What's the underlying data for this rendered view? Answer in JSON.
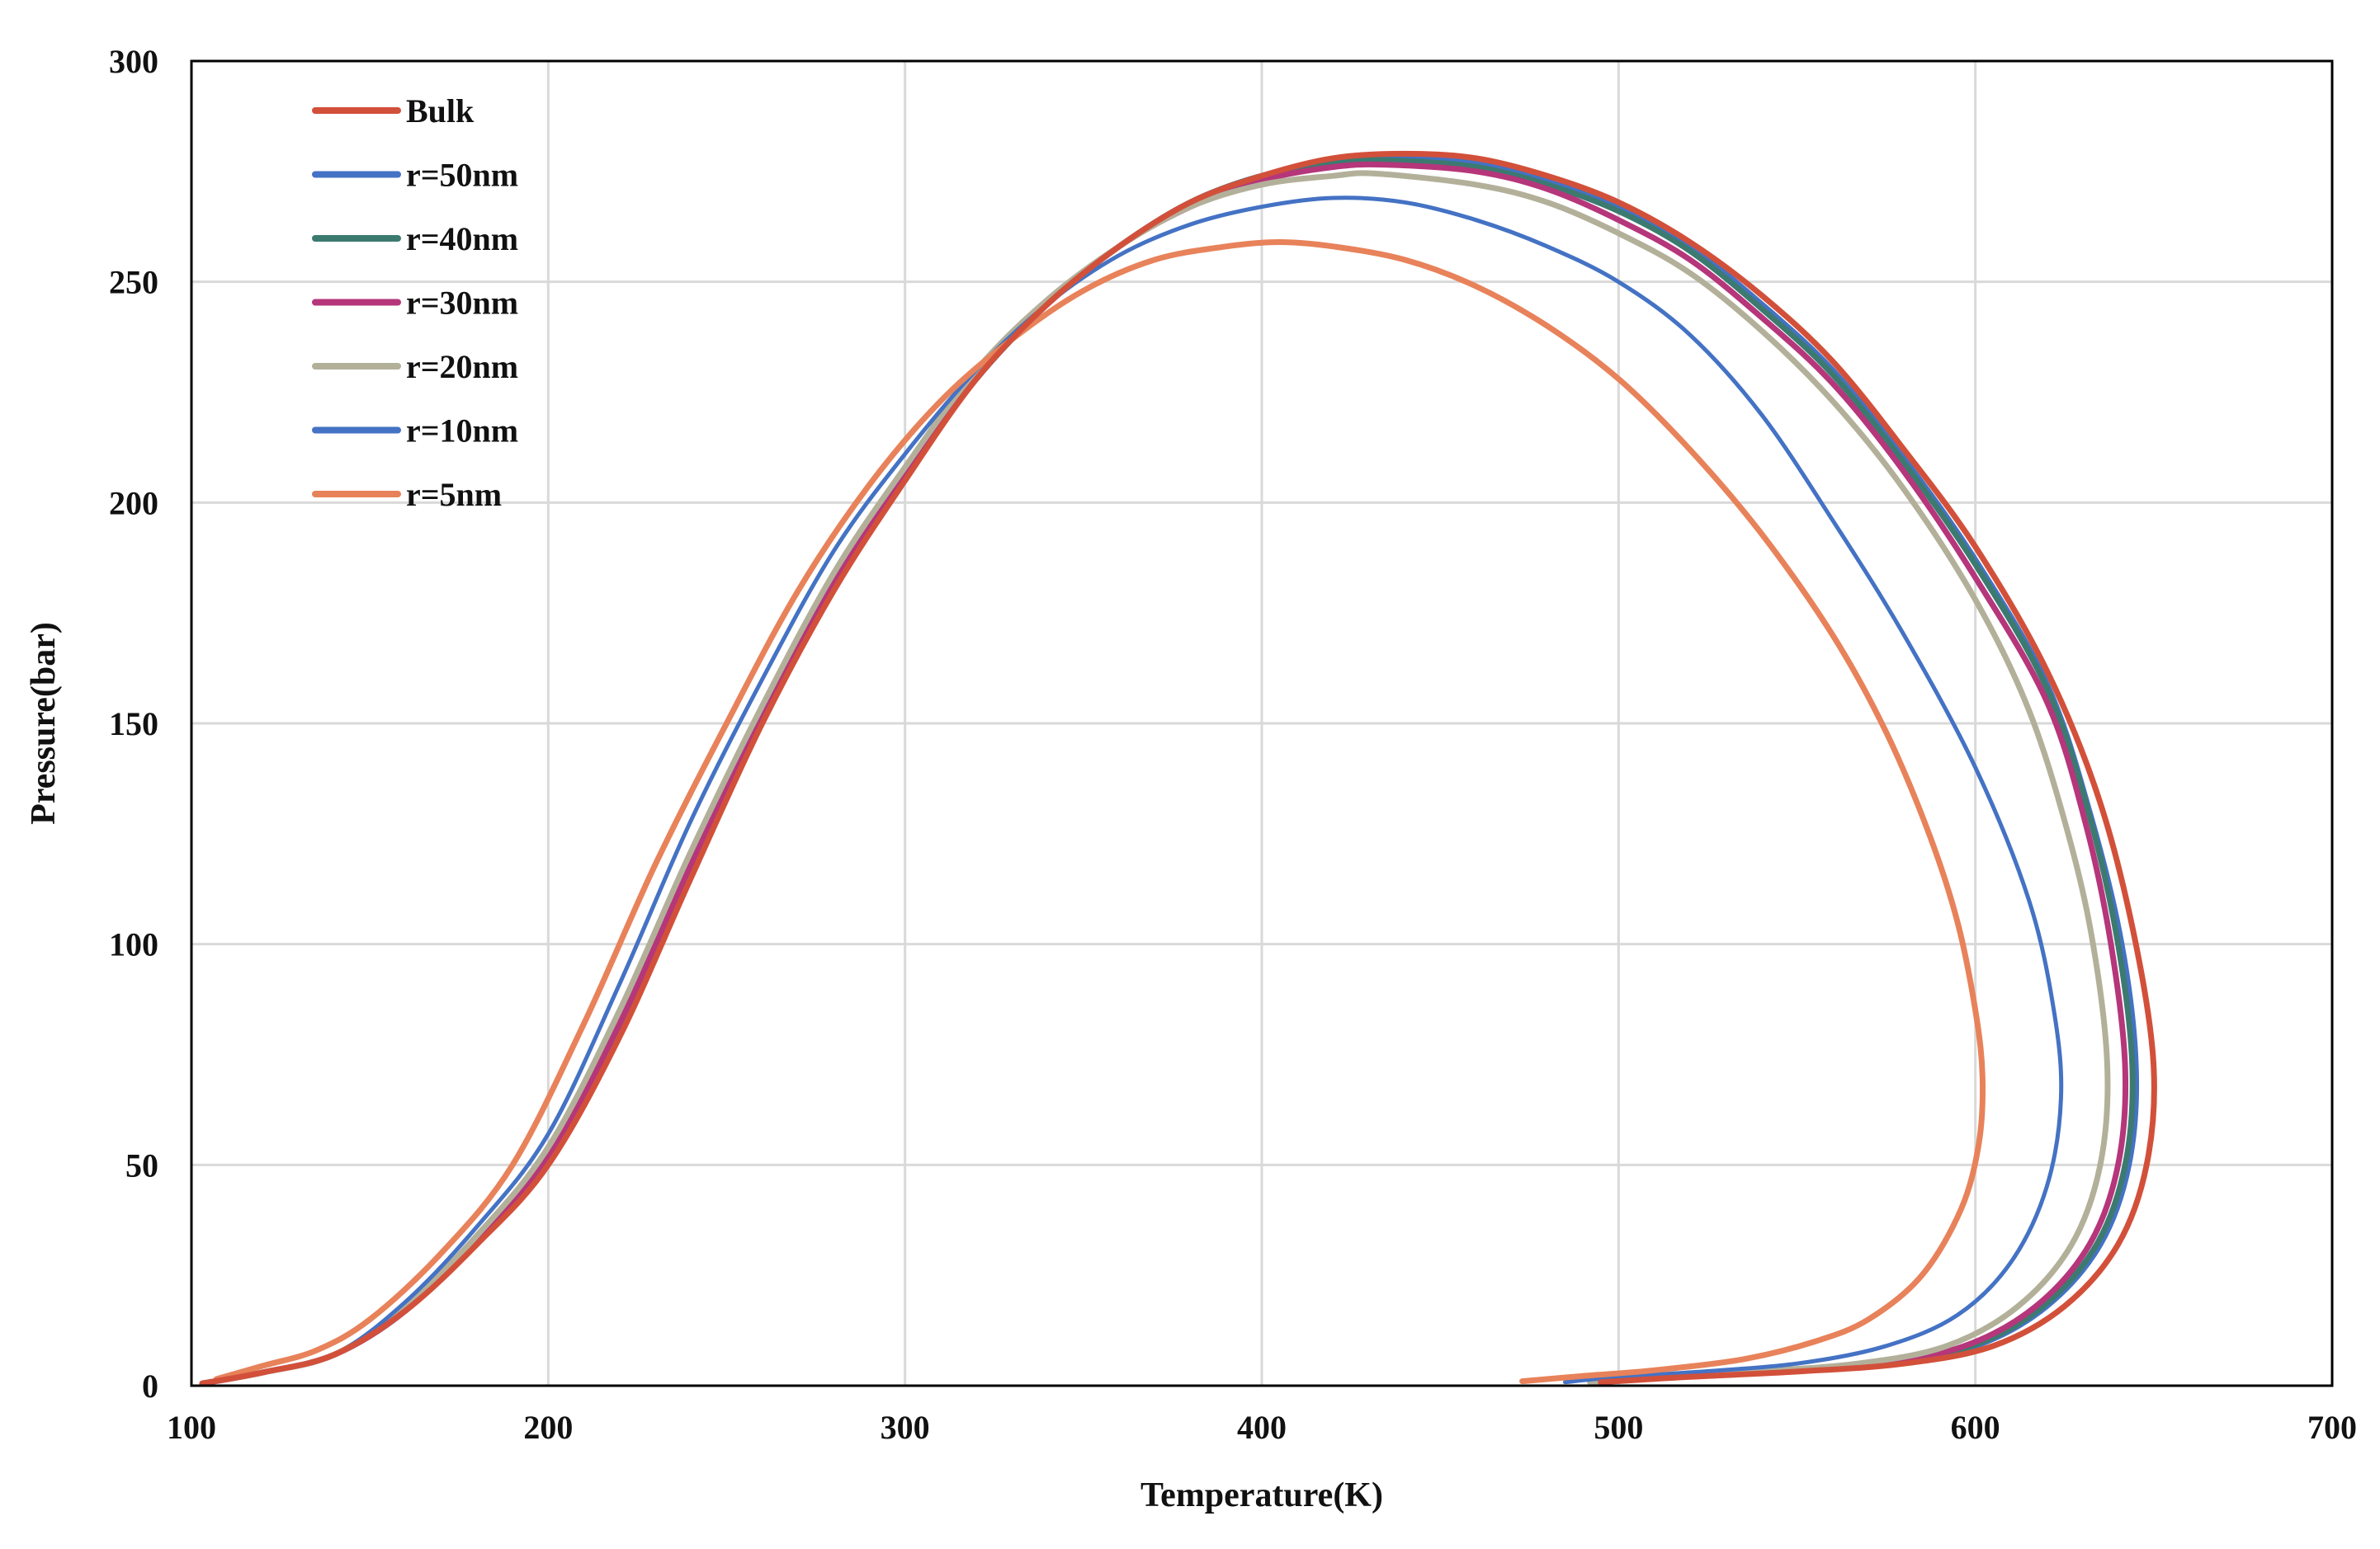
{
  "chart_data": {
    "type": "line",
    "title": "",
    "xlabel": "Temperature(K)",
    "ylabel": "Pressure(bar)",
    "xlim": [
      100,
      700
    ],
    "ylim": [
      0,
      300
    ],
    "xticks": [
      100,
      200,
      300,
      400,
      500,
      600,
      700
    ],
    "yticks": [
      0,
      50,
      100,
      150,
      200,
      250,
      300
    ],
    "xtick_labels": [
      "100",
      "200",
      "300",
      "400",
      "500",
      "600",
      "700"
    ],
    "ytick_labels": [
      "0",
      "50",
      "100",
      "150",
      "200",
      "250",
      "300"
    ],
    "grid": true,
    "legend_position": "top-left",
    "series": [
      {
        "name": "Bulk",
        "color": "#d2503a",
        "points": [
          [
            103,
            0.5
          ],
          [
            120,
            3
          ],
          [
            140,
            7
          ],
          [
            160,
            17
          ],
          [
            180,
            32
          ],
          [
            200,
            50
          ],
          [
            220,
            79
          ],
          [
            240,
            115
          ],
          [
            260,
            150
          ],
          [
            280,
            180
          ],
          [
            300,
            205
          ],
          [
            320,
            228
          ],
          [
            340,
            245
          ],
          [
            360,
            258
          ],
          [
            380,
            268
          ],
          [
            400,
            274
          ],
          [
            420,
            278
          ],
          [
            440,
            279
          ],
          [
            460,
            278
          ],
          [
            480,
            274
          ],
          [
            500,
            268
          ],
          [
            520,
            259
          ],
          [
            540,
            247
          ],
          [
            560,
            232
          ],
          [
            580,
            212
          ],
          [
            600,
            190
          ],
          [
            620,
            162
          ],
          [
            635,
            132
          ],
          [
            645,
            100
          ],
          [
            650,
            72
          ],
          [
            648,
            50
          ],
          [
            640,
            32
          ],
          [
            625,
            18
          ],
          [
            605,
            9
          ],
          [
            580,
            5
          ],
          [
            550,
            3.2
          ],
          [
            520,
            2
          ],
          [
            495,
            0.8
          ]
        ]
      },
      {
        "name": "r=50nm",
        "color": "#4472c4",
        "points": [
          [
            103,
            0.5
          ],
          [
            120,
            3
          ],
          [
            140,
            7
          ],
          [
            160,
            17
          ],
          [
            180,
            33
          ],
          [
            200,
            51
          ],
          [
            220,
            81
          ],
          [
            240,
            117
          ],
          [
            260,
            151
          ],
          [
            280,
            181
          ],
          [
            300,
            206
          ],
          [
            320,
            228
          ],
          [
            340,
            245
          ],
          [
            360,
            258
          ],
          [
            380,
            268
          ],
          [
            400,
            274
          ],
          [
            420,
            277
          ],
          [
            437,
            278
          ],
          [
            460,
            277
          ],
          [
            480,
            273
          ],
          [
            500,
            267
          ],
          [
            520,
            258
          ],
          [
            540,
            245
          ],
          [
            560,
            230
          ],
          [
            580,
            210
          ],
          [
            600,
            187
          ],
          [
            620,
            159
          ],
          [
            632,
            130
          ],
          [
            641,
            100
          ],
          [
            645,
            72
          ],
          [
            643,
            50
          ],
          [
            635,
            32
          ],
          [
            620,
            18
          ],
          [
            600,
            9
          ],
          [
            575,
            5
          ],
          [
            545,
            3.2
          ],
          [
            515,
            2
          ],
          [
            495,
            0.8
          ]
        ]
      },
      {
        "name": "r=40nm",
        "color": "#3c7a70",
        "points": [
          [
            103,
            0.5
          ],
          [
            120,
            3
          ],
          [
            140,
            7
          ],
          [
            160,
            17
          ],
          [
            180,
            33
          ],
          [
            200,
            51
          ],
          [
            220,
            81
          ],
          [
            240,
            117
          ],
          [
            260,
            151
          ],
          [
            280,
            181
          ],
          [
            300,
            206
          ],
          [
            320,
            228
          ],
          [
            340,
            245
          ],
          [
            360,
            258
          ],
          [
            380,
            268
          ],
          [
            400,
            274
          ],
          [
            420,
            277
          ],
          [
            436,
            277.5
          ],
          [
            460,
            276
          ],
          [
            480,
            272
          ],
          [
            500,
            266
          ],
          [
            520,
            257
          ],
          [
            540,
            244
          ],
          [
            560,
            229
          ],
          [
            580,
            209
          ],
          [
            600,
            186
          ],
          [
            620,
            158
          ],
          [
            632,
            129
          ],
          [
            640,
            100
          ],
          [
            644,
            72
          ],
          [
            642,
            50
          ],
          [
            634,
            32
          ],
          [
            619,
            18
          ],
          [
            599,
            9
          ],
          [
            574,
            5
          ],
          [
            544,
            3.2
          ],
          [
            514,
            2
          ],
          [
            495,
            0.8
          ]
        ]
      },
      {
        "name": "r=30nm",
        "color": "#b5367a",
        "points": [
          [
            103,
            0.5
          ],
          [
            120,
            3
          ],
          [
            140,
            7
          ],
          [
            160,
            17
          ],
          [
            180,
            33
          ],
          [
            200,
            52
          ],
          [
            220,
            82
          ],
          [
            240,
            118
          ],
          [
            260,
            152
          ],
          [
            280,
            182
          ],
          [
            300,
            207
          ],
          [
            320,
            229
          ],
          [
            340,
            245
          ],
          [
            360,
            258
          ],
          [
            380,
            267
          ],
          [
            400,
            273
          ],
          [
            420,
            276
          ],
          [
            435,
            276.5
          ],
          [
            460,
            275
          ],
          [
            480,
            271
          ],
          [
            500,
            264
          ],
          [
            520,
            255
          ],
          [
            540,
            242
          ],
          [
            560,
            227
          ],
          [
            580,
            207
          ],
          [
            600,
            183
          ],
          [
            620,
            155
          ],
          [
            631,
            127
          ],
          [
            638,
            100
          ],
          [
            642,
            72
          ],
          [
            640,
            50
          ],
          [
            632,
            32
          ],
          [
            617,
            18
          ],
          [
            597,
            9
          ],
          [
            572,
            5
          ],
          [
            542,
            3.2
          ],
          [
            512,
            2
          ],
          [
            494,
            0.8
          ]
        ]
      },
      {
        "name": "r=20nm",
        "color": "#b3b09a",
        "points": [
          [
            103,
            0.5
          ],
          [
            120,
            3
          ],
          [
            140,
            7
          ],
          [
            160,
            18
          ],
          [
            180,
            34
          ],
          [
            200,
            54
          ],
          [
            220,
            85
          ],
          [
            240,
            121
          ],
          [
            260,
            154
          ],
          [
            280,
            184
          ],
          [
            300,
            208
          ],
          [
            320,
            230
          ],
          [
            340,
            246
          ],
          [
            360,
            258
          ],
          [
            380,
            267
          ],
          [
            400,
            272
          ],
          [
            420,
            274
          ],
          [
            432,
            274.5
          ],
          [
            460,
            272
          ],
          [
            480,
            268
          ],
          [
            500,
            261
          ],
          [
            520,
            252
          ],
          [
            540,
            239
          ],
          [
            560,
            223
          ],
          [
            580,
            203
          ],
          [
            600,
            178
          ],
          [
            615,
            153
          ],
          [
            626,
            125
          ],
          [
            633,
            100
          ],
          [
            637,
            72
          ],
          [
            635,
            50
          ],
          [
            627,
            32
          ],
          [
            612,
            18
          ],
          [
            592,
            9
          ],
          [
            567,
            5
          ],
          [
            537,
            3.2
          ],
          [
            510,
            2
          ],
          [
            492,
            0.8
          ]
        ]
      },
      {
        "name": "r=10nm",
        "color": "#4472c4",
        "points": [
          [
            103,
            0.5
          ],
          [
            120,
            3
          ],
          [
            140,
            7
          ],
          [
            160,
            19
          ],
          [
            180,
            36
          ],
          [
            200,
            57
          ],
          [
            220,
            91
          ],
          [
            240,
            128
          ],
          [
            260,
            160
          ],
          [
            280,
            189
          ],
          [
            300,
            211
          ],
          [
            320,
            230
          ],
          [
            340,
            245
          ],
          [
            360,
            256
          ],
          [
            380,
            263
          ],
          [
            400,
            267
          ],
          [
            420,
            269
          ],
          [
            440,
            268
          ],
          [
            460,
            264
          ],
          [
            480,
            258
          ],
          [
            500,
            250
          ],
          [
            520,
            238
          ],
          [
            540,
            220
          ],
          [
            560,
            196
          ],
          [
            580,
            170
          ],
          [
            600,
            140
          ],
          [
            615,
            110
          ],
          [
            622,
            85
          ],
          [
            624,
            65
          ],
          [
            620,
            45
          ],
          [
            610,
            28
          ],
          [
            595,
            16
          ],
          [
            575,
            9
          ],
          [
            550,
            5
          ],
          [
            520,
            3
          ],
          [
            500,
            2
          ],
          [
            485,
            0.8
          ]
        ]
      },
      {
        "name": "r=5nm",
        "color": "#e8825a",
        "points": [
          [
            107,
            1.5
          ],
          [
            120,
            4.5
          ],
          [
            135,
            8
          ],
          [
            150,
            15
          ],
          [
            170,
            30
          ],
          [
            190,
            50
          ],
          [
            210,
            82
          ],
          [
            230,
            118
          ],
          [
            250,
            150
          ],
          [
            270,
            180
          ],
          [
            290,
            204
          ],
          [
            310,
            223
          ],
          [
            330,
            237
          ],
          [
            350,
            248
          ],
          [
            370,
            255
          ],
          [
            390,
            258
          ],
          [
            405,
            259
          ],
          [
            420,
            258
          ],
          [
            440,
            255
          ],
          [
            460,
            249
          ],
          [
            480,
            240
          ],
          [
            500,
            228
          ],
          [
            520,
            212
          ],
          [
            540,
            193
          ],
          [
            560,
            170
          ],
          [
            575,
            148
          ],
          [
            587,
            125
          ],
          [
            595,
            105
          ],
          [
            600,
            85
          ],
          [
            602,
            70
          ],
          [
            601,
            55
          ],
          [
            596,
            40
          ],
          [
            585,
            25
          ],
          [
            570,
            15
          ],
          [
            555,
            10
          ],
          [
            535,
            6
          ],
          [
            510,
            3.5
          ],
          [
            490,
            2.2
          ],
          [
            473,
            1
          ]
        ]
      }
    ]
  }
}
